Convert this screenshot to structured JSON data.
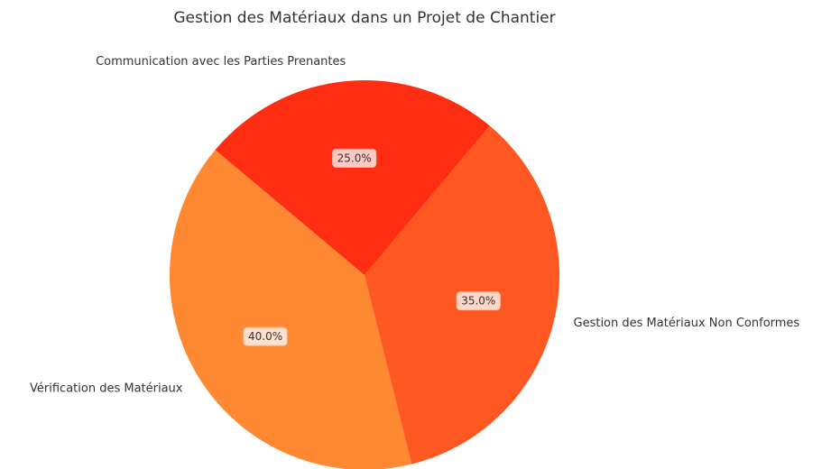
{
  "chart_data": {
    "type": "pie",
    "title": "Gestion des Matériaux dans un Projet de Chantier",
    "categories": [
      "Vérification des Matériaux",
      "Gestion des Matériaux Non Conformes",
      "Communication avec les Parties Prenantes"
    ],
    "values": [
      40,
      35,
      25
    ],
    "value_labels": [
      "40.0%",
      "35.0%",
      "25.0%"
    ],
    "colors": [
      "#ff8833",
      "#ff5722",
      "#ff2d12"
    ]
  }
}
